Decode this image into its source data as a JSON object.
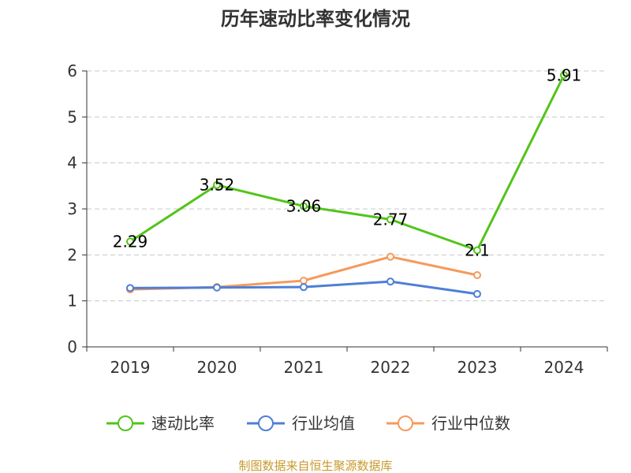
{
  "chart_data": {
    "type": "line",
    "title": "历年速动比率变化情况",
    "categories": [
      "2019",
      "2020",
      "2021",
      "2022",
      "2023",
      "2024"
    ],
    "ylim": [
      0,
      6
    ],
    "yticks": [
      "0",
      "1",
      "2",
      "3",
      "4",
      "5",
      "6"
    ],
    "grid": true,
    "legend_position": "bottom",
    "series": [
      {
        "name": "速动比率",
        "color": "#52c41a",
        "values": [
          2.29,
          3.52,
          3.06,
          2.77,
          2.1,
          5.91
        ],
        "labels": [
          "2.29",
          "3.52",
          "3.06",
          "2.77",
          "2.1",
          "5.91"
        ]
      },
      {
        "name": "行业均值",
        "color": "#4e7fd6",
        "values": [
          1.28,
          1.29,
          1.3,
          1.42,
          1.15,
          null
        ]
      },
      {
        "name": "行业中位数",
        "color": "#f59a5c",
        "values": [
          1.25,
          1.3,
          1.44,
          1.96,
          1.56,
          null
        ]
      }
    ],
    "source": "制图数据来自恒生聚源数据库",
    "source_color": "#c79a2d"
  }
}
